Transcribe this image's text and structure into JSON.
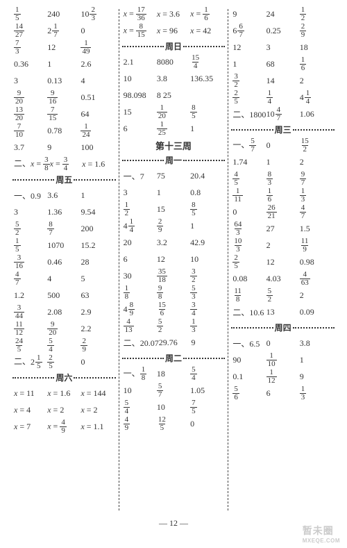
{
  "pageNumber": "— 12 —",
  "watermark": {
    "line1": "暂未圈",
    "line2": "MXEQE.COM"
  },
  "headings": {
    "fri": "周五",
    "sat": "周六",
    "sun": "周日",
    "week13": "第十三周",
    "mon": "周一",
    "tue": "周二",
    "wed": "周三",
    "thu": "周四"
  },
  "labels": {
    "yi": "一、",
    "er": "二、",
    "xeq": "x ="
  },
  "col1": {
    "a": [
      [
        {
          "f": [
            1,
            5
          ]
        },
        "240",
        {
          "m": [
            10,
            2,
            3
          ]
        }
      ],
      [
        {
          "f": [
            14,
            27
          ]
        },
        {
          "m": [
            2,
            1,
            7
          ]
        },
        "0"
      ],
      [
        {
          "f": [
            7,
            3
          ]
        },
        "12",
        {
          "f": [
            1,
            49
          ]
        }
      ],
      [
        "0.36",
        "1",
        "2.6"
      ],
      [
        "3",
        "0.13",
        "4"
      ],
      [
        {
          "f": [
            9,
            20
          ]
        },
        {
          "f": [
            9,
            16
          ]
        },
        "0.51"
      ],
      [
        {
          "f": [
            13,
            20
          ]
        },
        {
          "f": [
            7,
            15
          ]
        },
        "64"
      ],
      [
        {
          "f": [
            7,
            10
          ]
        },
        "0.78",
        {
          "f": [
            1,
            24
          ]
        }
      ],
      [
        "3.7",
        "9",
        "100"
      ]
    ],
    "b_prefix": "er",
    "b": [
      [
        {
          "xf": [
            3,
            8
          ]
        },
        {
          "xf": [
            3,
            4
          ]
        },
        {
          "xv": "1.6"
        }
      ]
    ],
    "fri_a_prefix": "yi",
    "fri_a": [
      [
        "0.9",
        "3.6",
        "1"
      ],
      [
        "3",
        "1.36",
        "9.54"
      ],
      [
        {
          "f": [
            5,
            2
          ]
        },
        {
          "f": [
            8,
            7
          ]
        },
        "200"
      ],
      [
        {
          "f": [
            1,
            5
          ]
        },
        "1070",
        "15.2"
      ],
      [
        {
          "f": [
            3,
            16
          ]
        },
        "0.46",
        "28"
      ],
      [
        {
          "f": [
            4,
            7
          ]
        },
        "4",
        "5"
      ],
      [
        "1.2",
        "500",
        "63"
      ],
      [
        {
          "f": [
            3,
            44
          ]
        },
        "2.08",
        "2.9"
      ],
      [
        {
          "f": [
            11,
            12
          ]
        },
        {
          "f": [
            9,
            20
          ]
        },
        "2.2"
      ],
      [
        {
          "f": [
            24,
            5
          ]
        },
        {
          "f": [
            5,
            4
          ]
        },
        {
          "f": [
            2,
            9
          ]
        }
      ]
    ],
    "fri_b_prefix": "er",
    "fri_b": [
      [
        {
          "m": [
            2,
            1,
            5
          ]
        },
        {
          "f": [
            2,
            5
          ]
        },
        "0"
      ]
    ],
    "sat": [
      [
        {
          "xv": "11"
        },
        {
          "xv": "1.6"
        },
        {
          "xv": "144"
        }
      ],
      [
        {
          "xv": "4"
        },
        {
          "xv": "2"
        },
        {
          "xv": "2"
        }
      ],
      [
        {
          "xv": "7"
        },
        {
          "xf": [
            4,
            9
          ]
        },
        {
          "xv": "1.1"
        }
      ]
    ]
  },
  "col2": {
    "top": [
      [
        {
          "xf": [
            17,
            36
          ]
        },
        {
          "xv": "3.6"
        },
        {
          "xf": [
            1,
            6
          ]
        }
      ],
      [
        {
          "xf": [
            8,
            15
          ]
        },
        {
          "xv": "96"
        },
        {
          "xv": "42"
        }
      ]
    ],
    "sun": [
      [
        "2.1",
        "8080",
        {
          "f": [
            15,
            4
          ]
        }
      ],
      [
        "10",
        "3.8",
        "136.35"
      ],
      [
        "98.098",
        "8   25",
        ""
      ],
      [
        "15",
        {
          "f": [
            1,
            20
          ]
        },
        {
          "f": [
            8,
            5
          ]
        }
      ],
      [
        "6",
        {
          "f": [
            1,
            25
          ]
        },
        "1"
      ]
    ],
    "mon_a_prefix": "yi",
    "mon_a": [
      [
        "7",
        "75",
        "20.4"
      ],
      [
        "3",
        "1",
        "0.8"
      ],
      [
        {
          "f": [
            1,
            2
          ]
        },
        "15",
        {
          "f": [
            8,
            5
          ]
        }
      ],
      [
        {
          "m": [
            4,
            1,
            4
          ]
        },
        {
          "f": [
            2,
            9
          ]
        },
        "1"
      ],
      [
        "20",
        "3.2",
        "42.9"
      ],
      [
        "6",
        "12",
        "10"
      ],
      [
        "30",
        {
          "f": [
            35,
            18
          ]
        },
        {
          "f": [
            3,
            2
          ]
        }
      ],
      [
        {
          "f": [
            1,
            8
          ]
        },
        {
          "f": [
            9,
            8
          ]
        },
        {
          "f": [
            5,
            3
          ]
        }
      ],
      [
        {
          "m": [
            4,
            8,
            9
          ]
        },
        {
          "f": [
            15,
            6
          ]
        },
        {
          "f": [
            3,
            4
          ]
        }
      ],
      [
        {
          "f": [
            4,
            13
          ]
        },
        {
          "f": [
            5,
            2
          ]
        },
        {
          "f": [
            1,
            3
          ]
        }
      ]
    ],
    "mon_b_prefix": "er",
    "mon_b": [
      [
        "20.07",
        "29.76",
        "9"
      ]
    ],
    "tue_prefix": "yi",
    "tue": [
      [
        {
          "f": [
            1,
            8
          ]
        },
        "18",
        {
          "f": [
            5,
            4
          ]
        }
      ],
      [
        "10",
        {
          "f": [
            5,
            7
          ]
        },
        "1.05"
      ],
      [
        {
          "f": [
            5,
            4
          ]
        },
        "10",
        {
          "f": [
            7,
            5
          ]
        }
      ],
      [
        {
          "f": [
            4,
            9
          ]
        },
        {
          "f": [
            12,
            5
          ]
        },
        "0"
      ]
    ]
  },
  "col3": {
    "top": [
      [
        "9",
        "24",
        {
          "f": [
            1,
            2
          ]
        }
      ],
      [
        {
          "m": [
            6,
            6,
            7
          ]
        },
        "0.25",
        {
          "f": [
            2,
            9
          ]
        }
      ],
      [
        "12",
        "3",
        "18"
      ],
      [
        "1",
        "68",
        {
          "f": [
            1,
            6
          ]
        }
      ],
      [
        {
          "f": [
            3,
            2
          ]
        },
        "14",
        "2"
      ],
      [
        {
          "f": [
            2,
            5
          ]
        },
        {
          "f": [
            1,
            4
          ]
        },
        {
          "m": [
            4,
            1,
            4
          ]
        }
      ]
    ],
    "top_b_prefix": "er",
    "top_b": [
      [
        "1800",
        {
          "m": [
            10,
            4,
            7
          ]
        },
        "1.06"
      ]
    ],
    "wed_a_prefix": "yi",
    "wed_a": [
      [
        {
          "f": [
            5,
            7
          ]
        },
        "0",
        {
          "f": [
            15,
            2
          ]
        }
      ],
      [
        "1.74",
        "1",
        "2"
      ],
      [
        {
          "f": [
            4,
            5
          ]
        },
        {
          "f": [
            8,
            3
          ]
        },
        {
          "f": [
            9,
            7
          ]
        }
      ],
      [
        {
          "f": [
            1,
            11
          ]
        },
        {
          "f": [
            1,
            6
          ]
        },
        {
          "f": [
            1,
            3
          ]
        }
      ],
      [
        "0",
        {
          "f": [
            26,
            21
          ]
        },
        {
          "f": [
            4,
            7
          ]
        }
      ],
      [
        {
          "f": [
            64,
            3
          ]
        },
        "27",
        "1.5"
      ],
      [
        {
          "f": [
            10,
            3
          ]
        },
        "2",
        {
          "f": [
            11,
            9
          ]
        }
      ],
      [
        {
          "f": [
            2,
            5
          ]
        },
        "12",
        "0.98"
      ],
      [
        "0.08",
        "4.03",
        {
          "f": [
            4,
            63
          ]
        }
      ],
      [
        {
          "f": [
            11,
            8
          ]
        },
        {
          "f": [
            5,
            2
          ]
        },
        "2"
      ]
    ],
    "wed_b_prefix": "er",
    "wed_b": [
      [
        "10.6",
        "13",
        "0.09"
      ]
    ],
    "thu_prefix": "yi",
    "thu": [
      [
        "6.5",
        "0",
        "3.8"
      ],
      [
        "90",
        {
          "f": [
            1,
            10
          ]
        },
        "1"
      ],
      [
        "0.1",
        {
          "f": [
            1,
            12
          ]
        },
        "9"
      ],
      [
        {
          "f": [
            5,
            6
          ]
        },
        "6",
        {
          "f": [
            1,
            3
          ]
        }
      ]
    ]
  }
}
